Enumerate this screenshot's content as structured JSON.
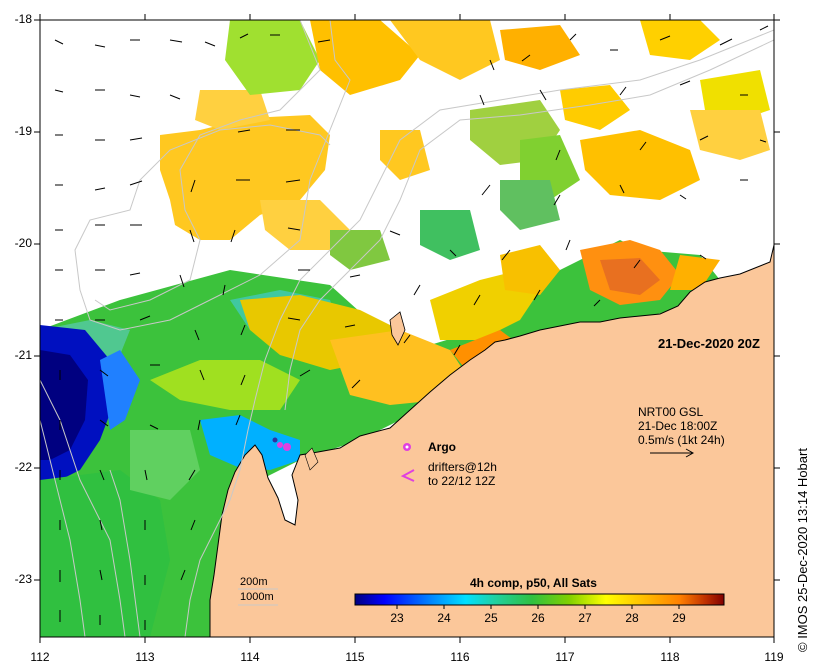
{
  "map": {
    "date_label": "21-Dec-2020 20Z",
    "lon_ticks": [
      "112",
      "113",
      "114",
      "115",
      "116",
      "117",
      "118",
      "119"
    ],
    "lat_ticks": [
      "-18",
      "-19",
      "-20",
      "-21",
      "-22",
      "-23"
    ],
    "isobath_labels": {
      "shallow": "200m",
      "deep": "1000m"
    },
    "colors": {
      "land": "#fbc79a",
      "cloud": "#ffffff",
      "isobath": "#c8c8c8",
      "coast": "#000000",
      "argo": "#e040e0"
    }
  },
  "legend": {
    "argo_label": "Argo",
    "drifters_line1": "drifters@12h",
    "drifters_line2": "to 22/12 12Z",
    "current_title": "NRT00 GSL",
    "current_time": "21-Dec 18:00Z",
    "current_scale": "0.5m/s (1kt 24h)"
  },
  "colorbar": {
    "title": "4h comp, p50, All Sats",
    "ticks": [
      "23",
      "24",
      "25",
      "26",
      "27",
      "28",
      "29"
    ],
    "range": [
      22.1,
      29.9
    ],
    "stops": [
      "#00007f",
      "#0000ff",
      "#0080ff",
      "#00e0ff",
      "#20d0a0",
      "#30c040",
      "#80d000",
      "#ffff00",
      "#ffc000",
      "#ff8000",
      "#c03000",
      "#800000"
    ]
  },
  "credit": "© IMOS 25-Dec-2020 13:14 Hobart"
}
